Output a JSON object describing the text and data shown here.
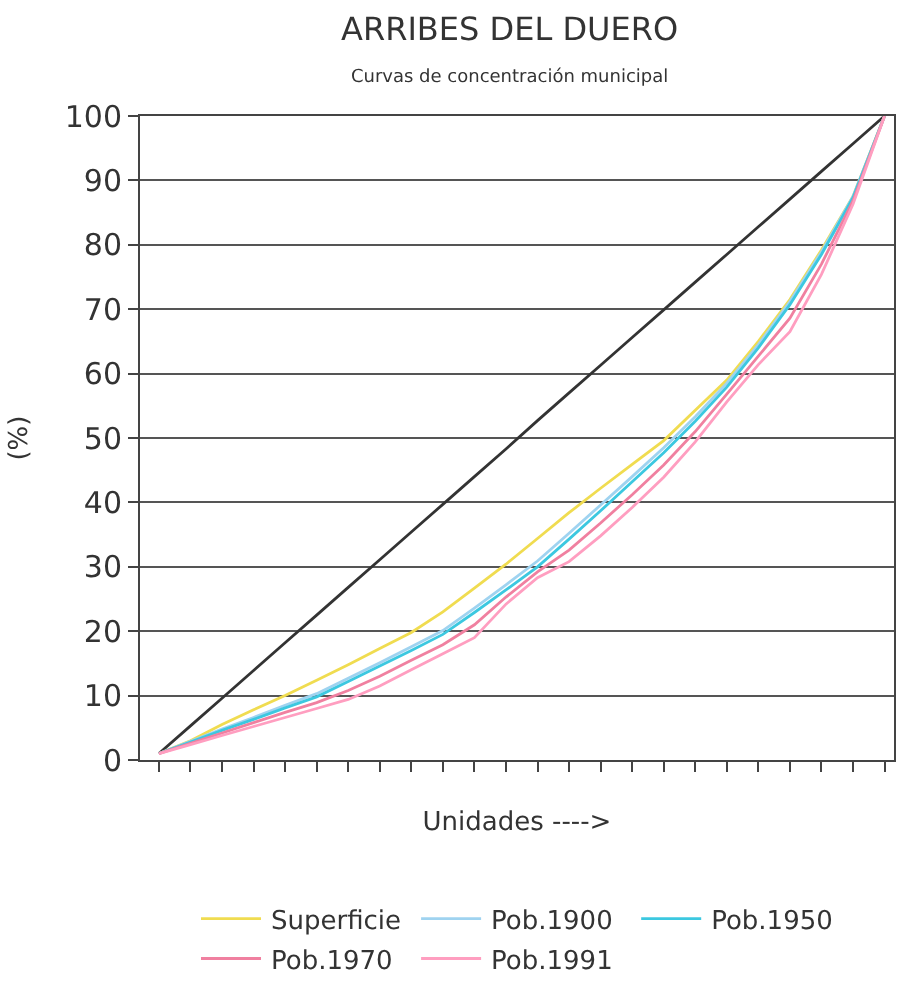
{
  "chart_data": {
    "type": "line",
    "title": "ARRIBES DEL DUERO",
    "subtitle": "Curvas de concentración municipal",
    "xlabel": "Unidades ---->",
    "ylabel": "(%)",
    "categories": [
      null,
      null,
      null,
      null,
      null,
      null,
      null,
      null,
      null,
      null,
      null,
      null,
      null,
      null,
      null,
      null,
      null,
      null,
      null,
      null,
      null,
      null,
      null,
      null
    ],
    "series": [
      {
        "color": "#333333",
        "values": [
          1,
          5.3,
          9.6,
          13.9,
          18.2,
          22.5,
          26.8,
          31.1,
          35.4,
          39.7,
          44,
          48.3,
          52.7,
          57,
          61.3,
          65.6,
          69.9,
          74.2,
          78.5,
          82.8,
          87.1,
          91.4,
          95.7,
          100
        ]
      },
      {
        "name": "Superficie",
        "color": "#f0dc50",
        "values": [
          1,
          3,
          5.5,
          7.8,
          10,
          12.4,
          14.8,
          17.3,
          19.8,
          23,
          26.7,
          30.4,
          34.4,
          38.4,
          42.2,
          45.9,
          49.6,
          54.3,
          59,
          65,
          71.5,
          79.2,
          87.5,
          100
        ]
      },
      {
        "name": "Pob.1900",
        "color": "#9fd3f0",
        "values": [
          1,
          2.9,
          4.8,
          6.6,
          8.5,
          10.3,
          12.7,
          15.1,
          17.6,
          20.1,
          23.6,
          27.2,
          30.9,
          35.2,
          39.6,
          44,
          48.5,
          53.3,
          58.5,
          64.5,
          71.2,
          78.9,
          87.5,
          100
        ]
      },
      {
        "name": "Pob.1950",
        "color": "#3cc8e0",
        "values": [
          1,
          2.8,
          4.6,
          6.3,
          8.1,
          9.8,
          12.2,
          14.6,
          17,
          19.5,
          22.9,
          26.4,
          30,
          34.3,
          38.7,
          43.2,
          47.7,
          52.6,
          57.9,
          64,
          70.7,
          78.5,
          87.3,
          100
        ]
      },
      {
        "name": "Pob.1970",
        "color": "#f080a0",
        "values": [
          1,
          2.6,
          4.2,
          5.8,
          7.4,
          8.9,
          10.8,
          13,
          15.5,
          17.9,
          21,
          25.3,
          29.2,
          32.6,
          36.8,
          41.2,
          45.8,
          51,
          56.8,
          62.7,
          68.6,
          77,
          86.8,
          100
        ]
      },
      {
        "name": "Pob.1991",
        "color": "#ff9ec0",
        "values": [
          1,
          2.4,
          3.8,
          5.2,
          6.6,
          8,
          9.4,
          11.5,
          14,
          16.5,
          19,
          24.2,
          28.3,
          30.8,
          34.8,
          39.2,
          43.9,
          49.4,
          55.6,
          61.4,
          66.5,
          75.4,
          86.3,
          100
        ]
      }
    ],
    "ylim": [
      0,
      100
    ],
    "yticks": [
      0,
      10,
      20,
      30,
      40,
      50,
      60,
      70,
      80,
      90,
      100
    ],
    "grid": "y",
    "legend": "bottom",
    "tick_labels": "y",
    "marker": "none",
    "line_style": "solid"
  }
}
